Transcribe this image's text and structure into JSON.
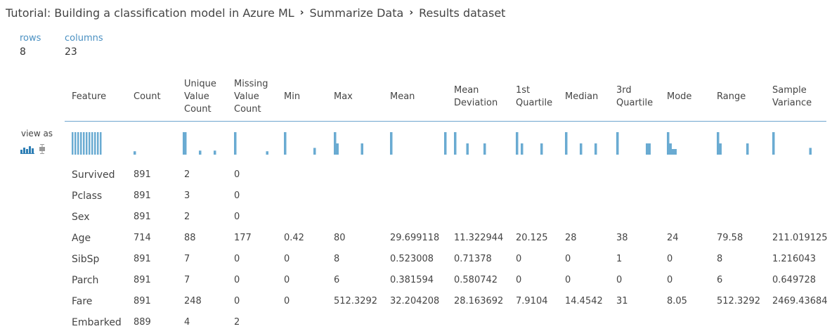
{
  "breadcrumb": {
    "items": [
      "Tutorial: Building a classification model in Azure ML",
      "Summarize Data",
      "Results dataset"
    ],
    "separator": "›"
  },
  "stats": {
    "rows_label": "rows",
    "rows_value": "8",
    "columns_label": "columns",
    "columns_value": "23"
  },
  "view_as": {
    "label": "view as",
    "icons": [
      "histogram-icon",
      "boxplot-icon"
    ]
  },
  "colors": {
    "accent": "#6aabd2",
    "label_blue": "#4a90c2",
    "text": "#444444"
  },
  "columns": [
    "Feature",
    "Count",
    "Unique\nValue\nCount",
    "Missing\nValue\nCount",
    "Min",
    "Max",
    "Mean",
    "Mean\nDeviation",
    "1st\nQuartile",
    "Median",
    "3rd\nQuartile",
    "Mode",
    "Range",
    "Sample\nVariance"
  ],
  "rows": [
    [
      "Survived",
      "891",
      "2",
      "0",
      "",
      "",
      "",
      "",
      "",
      "",
      "",
      "",
      "",
      ""
    ],
    [
      "Pclass",
      "891",
      "3",
      "0",
      "",
      "",
      "",
      "",
      "",
      "",
      "",
      "",
      "",
      ""
    ],
    [
      "Sex",
      "891",
      "2",
      "0",
      "",
      "",
      "",
      "",
      "",
      "",
      "",
      "",
      "",
      ""
    ],
    [
      "Age",
      "714",
      "88",
      "177",
      "0.42",
      "80",
      "29.699118",
      "11.322944",
      "20.125",
      "28",
      "38",
      "24",
      "79.58",
      "211.019125"
    ],
    [
      "SibSp",
      "891",
      "7",
      "0",
      "0",
      "8",
      "0.523008",
      "0.71378",
      "0",
      "0",
      "1",
      "0",
      "8",
      "1.216043"
    ],
    [
      "Parch",
      "891",
      "7",
      "0",
      "0",
      "6",
      "0.381594",
      "0.580742",
      "0",
      "0",
      "0",
      "0",
      "6",
      "0.649728"
    ],
    [
      "Fare",
      "891",
      "248",
      "0",
      "0",
      "512.3292",
      "32.204208",
      "28.163692",
      "7.9104",
      "14.4542",
      "31",
      "8.05",
      "512.3292",
      "2469.43684"
    ],
    [
      "Embarked",
      "889",
      "4",
      "2",
      "",
      "",
      "",
      "",
      "",
      "",
      "",
      "",
      "",
      ""
    ]
  ],
  "histograms": [
    [
      1,
      1,
      1,
      1,
      1,
      1,
      1,
      1,
      1,
      1,
      1
    ],
    [
      0.15,
      0,
      0,
      0,
      0,
      0,
      0,
      0,
      0,
      0,
      0,
      0,
      0,
      0,
      0,
      0,
      0,
      0,
      0,
      0,
      1
    ],
    [
      1,
      0,
      0,
      0,
      0,
      0,
      0.18,
      0,
      0,
      0,
      0,
      0,
      0.18
    ],
    [
      1,
      0,
      0,
      0,
      0,
      0,
      0,
      0,
      0,
      0,
      0,
      0,
      0,
      0.15
    ],
    [
      1,
      0,
      0,
      0,
      0,
      0,
      0,
      0,
      0,
      0,
      0,
      0,
      0.3
    ],
    [
      1,
      0.5,
      0,
      0,
      0,
      0,
      0,
      0,
      0,
      0,
      0,
      0.5
    ],
    [
      1,
      0,
      0,
      0,
      0,
      0,
      0,
      0,
      0,
      0,
      0,
      0,
      0,
      0,
      0,
      0,
      0,
      0,
      0,
      0,
      0,
      0,
      1
    ],
    [
      1,
      0,
      0,
      0,
      0,
      0.5,
      0,
      0,
      0,
      0,
      0,
      0,
      0.5
    ],
    [
      1,
      0,
      0.5,
      0,
      0,
      0,
      0,
      0,
      0,
      0,
      0.5
    ],
    [
      1,
      0,
      0,
      0,
      0,
      0,
      0.5,
      0,
      0,
      0,
      0,
      0,
      0.5
    ],
    [
      1,
      0,
      0,
      0,
      0,
      0,
      0,
      0,
      0,
      0,
      0,
      0,
      0.5,
      0.5
    ],
    [
      1,
      0.5,
      0.25,
      0.25
    ],
    [
      1,
      0.5,
      0,
      0,
      0,
      0,
      0,
      0,
      0,
      0,
      0,
      0,
      0.5
    ],
    [
      1,
      0,
      0,
      0,
      0,
      0,
      0,
      0,
      0,
      0,
      0,
      0,
      0,
      0,
      0,
      0.3
    ]
  ]
}
